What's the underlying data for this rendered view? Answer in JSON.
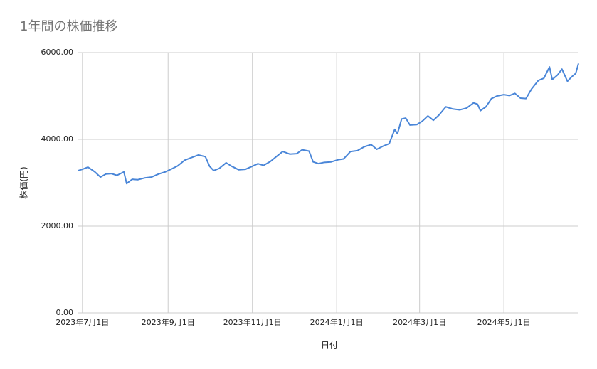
{
  "chart_data": {
    "type": "line",
    "title": "1年間の株価推移",
    "x_label": "日付",
    "y_label": "株価(円)",
    "x": [
      "2023-06-28",
      "2023-07-01",
      "2023-07-05",
      "2023-07-10",
      "2023-07-14",
      "2023-07-18",
      "2023-07-22",
      "2023-07-26",
      "2023-07-31",
      "2023-08-02",
      "2023-08-06",
      "2023-08-10",
      "2023-08-15",
      "2023-08-20",
      "2023-08-25",
      "2023-08-30",
      "2023-09-03",
      "2023-09-08",
      "2023-09-13",
      "2023-09-18",
      "2023-09-23",
      "2023-09-28",
      "2023-10-01",
      "2023-10-04",
      "2023-10-08",
      "2023-10-13",
      "2023-10-17",
      "2023-10-22",
      "2023-10-27",
      "2023-11-01",
      "2023-11-05",
      "2023-11-09",
      "2023-11-14",
      "2023-11-19",
      "2023-11-23",
      "2023-11-28",
      "2023-12-03",
      "2023-12-07",
      "2023-12-12",
      "2023-12-15",
      "2023-12-19",
      "2023-12-23",
      "2023-12-28",
      "2024-01-02",
      "2024-01-06",
      "2024-01-11",
      "2024-01-16",
      "2024-01-21",
      "2024-01-26",
      "2024-01-30",
      "2024-02-04",
      "2024-02-08",
      "2024-02-12",
      "2024-02-14",
      "2024-02-17",
      "2024-02-20",
      "2024-02-23",
      "2024-02-28",
      "2024-03-03",
      "2024-03-07",
      "2024-03-11",
      "2024-03-15",
      "2024-03-20",
      "2024-03-25",
      "2024-03-30",
      "2024-04-04",
      "2024-04-09",
      "2024-04-12",
      "2024-04-14",
      "2024-04-18",
      "2024-04-22",
      "2024-04-26",
      "2024-05-01",
      "2024-05-05",
      "2024-05-09",
      "2024-05-13",
      "2024-05-17",
      "2024-05-21",
      "2024-05-26",
      "2024-05-30",
      "2024-06-03",
      "2024-06-05",
      "2024-06-09",
      "2024-06-12",
      "2024-06-16",
      "2024-06-19",
      "2024-06-22",
      "2024-06-24"
    ],
    "series": [
      {
        "color": "#4a86d8",
        "values": [
          3280,
          3310,
          3360,
          3250,
          3130,
          3200,
          3210,
          3170,
          3250,
          2980,
          3080,
          3070,
          3110,
          3130,
          3200,
          3250,
          3310,
          3390,
          3520,
          3580,
          3640,
          3600,
          3380,
          3280,
          3330,
          3460,
          3380,
          3300,
          3310,
          3380,
          3440,
          3400,
          3490,
          3620,
          3720,
          3660,
          3670,
          3760,
          3730,
          3480,
          3440,
          3470,
          3480,
          3530,
          3550,
          3720,
          3740,
          3830,
          3880,
          3770,
          3850,
          3900,
          4230,
          4130,
          4470,
          4490,
          4330,
          4340,
          4420,
          4540,
          4440,
          4560,
          4750,
          4700,
          4680,
          4720,
          4840,
          4810,
          4660,
          4750,
          4940,
          5000,
          5030,
          5010,
          5060,
          4950,
          4940,
          5160,
          5360,
          5410,
          5670,
          5380,
          5490,
          5620,
          5340,
          5440,
          5520,
          5750
        ]
      }
    ],
    "xlim": [
      "2023-06-28",
      "2024-06-24"
    ],
    "xticks": [
      {
        "value": "2023-07-01",
        "label": "2023年7月1日"
      },
      {
        "value": "2023-09-01",
        "label": "2023年9月1日"
      },
      {
        "value": "2023-11-01",
        "label": "2023年11月1日"
      },
      {
        "value": "2024-01-01",
        "label": "2024年1月1日"
      },
      {
        "value": "2024-03-01",
        "label": "2024年3月1日"
      },
      {
        "value": "2024-05-01",
        "label": "2024年5月1日"
      }
    ],
    "ylim": [
      0,
      6000
    ],
    "yticks": [
      {
        "value": 0,
        "label": "0.00"
      },
      {
        "value": 2000,
        "label": "2000.00"
      },
      {
        "value": 4000,
        "label": "4000.00"
      },
      {
        "value": 6000,
        "label": "6000.00"
      }
    ],
    "grid": true
  }
}
